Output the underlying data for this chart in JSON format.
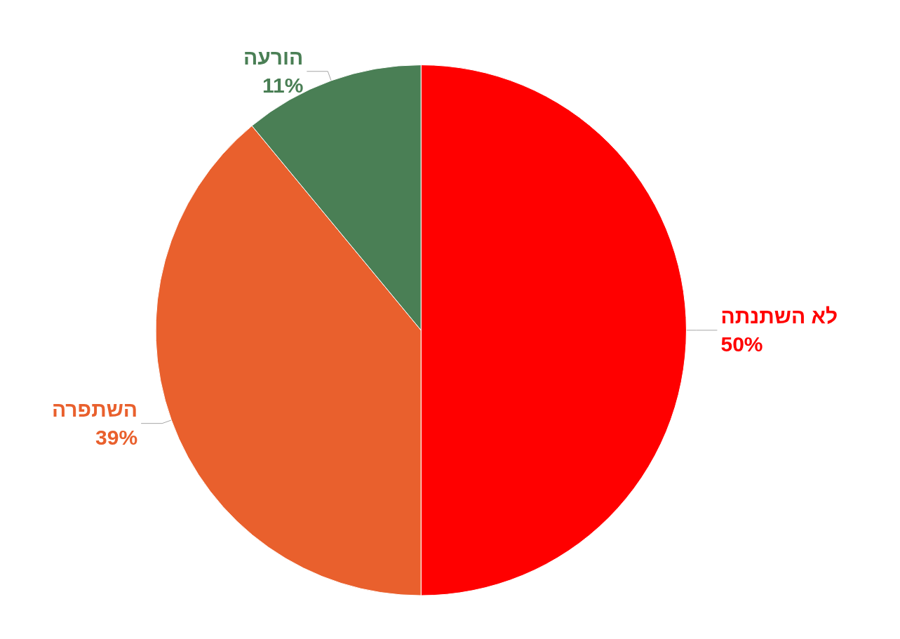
{
  "chart_data": {
    "type": "pie",
    "categories": [
      "לא השתנתה",
      "השתפרה",
      "הורעה"
    ],
    "values": [
      50,
      39,
      11
    ],
    "colors": [
      "#ff0000",
      "#e9602d",
      "#4a7f55"
    ],
    "value_labels": [
      "50%",
      "39%",
      "11%"
    ]
  }
}
